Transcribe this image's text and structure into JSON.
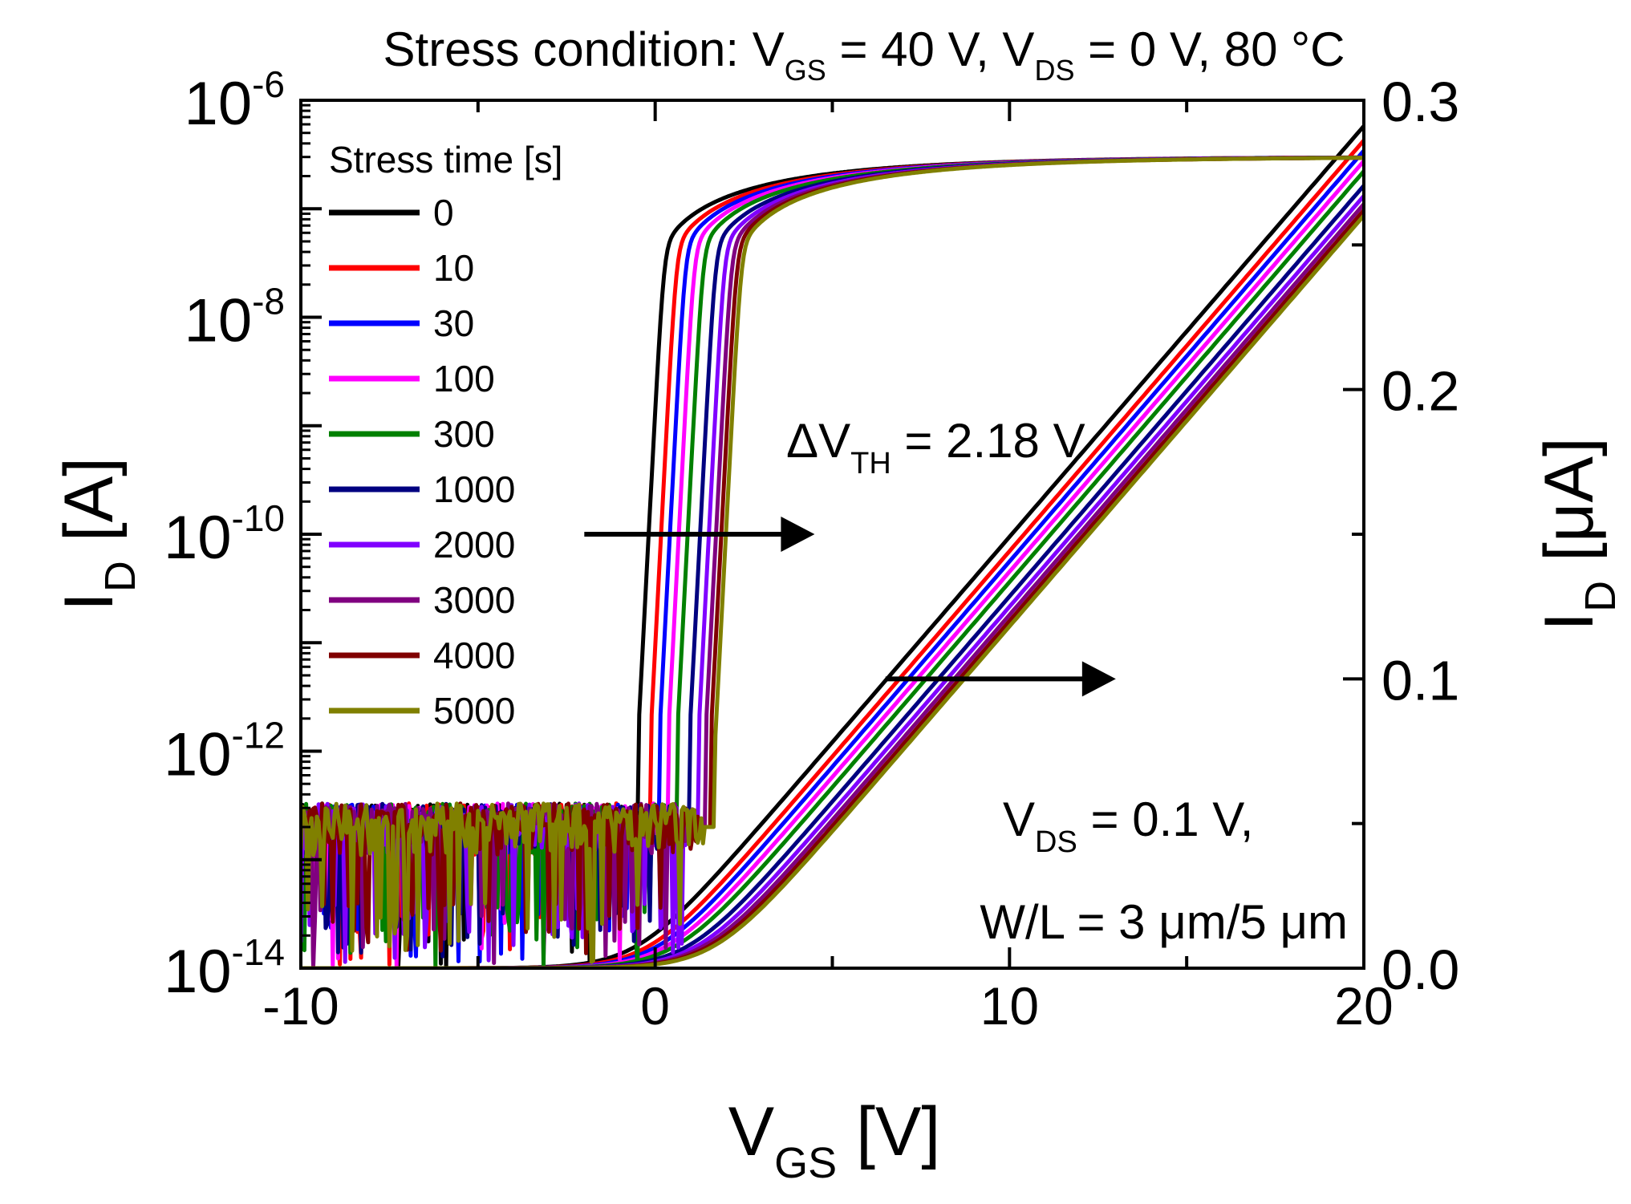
{
  "chart_data": {
    "type": "line",
    "title": {
      "prefix": "Stress condition: V",
      "sub1": "GS",
      "mid": " = 40 V, V",
      "sub2": "DS",
      "suffix": " = 0 V, 80 °C"
    },
    "xlabel": {
      "main": "V",
      "sub": "GS",
      "unit": " [V]"
    },
    "ylabel_left": {
      "main": "I",
      "sub": "D",
      "unit": " [A]"
    },
    "ylabel_right": {
      "main": "I",
      "sub": "D",
      "unit": " [μA]"
    },
    "xlim": [
      -10,
      20
    ],
    "ylim_left_log": [
      1e-14,
      1e-06
    ],
    "ylim_right_linear": [
      0.0,
      0.3
    ],
    "x_ticks": [
      {
        "value": -10,
        "label": "-10"
      },
      {
        "value": 0,
        "label": "0"
      },
      {
        "value": 10,
        "label": "10"
      },
      {
        "value": 20,
        "label": "20"
      }
    ],
    "y_left_ticks": [
      {
        "exp": -6,
        "base": "10",
        "sup": "-6"
      },
      {
        "exp": -8,
        "base": "10",
        "sup": "-8"
      },
      {
        "exp": -10,
        "base": "10",
        "sup": "-10"
      },
      {
        "exp": -12,
        "base": "10",
        "sup": "-12"
      },
      {
        "exp": -14,
        "base": "10",
        "sup": "-14"
      }
    ],
    "y_right_ticks": [
      {
        "value": 0.3,
        "label": "0.3"
      },
      {
        "value": 0.2,
        "label": "0.2"
      },
      {
        "value": 0.1,
        "label": "0.1"
      },
      {
        "value": 0.0,
        "label": "0.0"
      }
    ],
    "legend": {
      "title": "Stress time [s]",
      "placement": "top-left"
    },
    "series": [
      {
        "name": "0",
        "color": "#000000",
        "vth": -0.5,
        "noise_seed": 1
      },
      {
        "name": "10",
        "color": "#ff0000",
        "vth": -0.15,
        "noise_seed": 2
      },
      {
        "name": "30",
        "color": "#0000ff",
        "vth": 0.1,
        "noise_seed": 3
      },
      {
        "name": "100",
        "color": "#ff00ff",
        "vth": 0.35,
        "noise_seed": 4
      },
      {
        "name": "300",
        "color": "#008000",
        "vth": 0.6,
        "noise_seed": 5
      },
      {
        "name": "1000",
        "color": "#000080",
        "vth": 0.95,
        "noise_seed": 6
      },
      {
        "name": "2000",
        "color": "#8000ff",
        "vth": 1.2,
        "noise_seed": 7
      },
      {
        "name": "3000",
        "color": "#800080",
        "vth": 1.4,
        "noise_seed": 8
      },
      {
        "name": "4000",
        "color": "#800000",
        "vth": 1.55,
        "noise_seed": 9
      },
      {
        "name": "5000",
        "color": "#808000",
        "vth": 1.68,
        "noise_seed": 10
      }
    ],
    "annotations": {
      "delta_vth": {
        "prefix": "ΔV",
        "sub": "TH",
        "suffix": " = 2.18 V"
      },
      "vds": {
        "prefix": "V",
        "sub": "DS",
        "suffix": " = 0.1 V,"
      },
      "wl": "W/L = 3 μm/5 μm"
    },
    "arrows": [
      {
        "from": [
          -2.0,
          1e-10
        ],
        "to": [
          4.5,
          1e-10
        ],
        "axis": "left-log"
      },
      {
        "from": [
          6.5,
          0.1
        ],
        "to": [
          13.0,
          0.1
        ],
        "axis": "right-linear"
      }
    ]
  }
}
